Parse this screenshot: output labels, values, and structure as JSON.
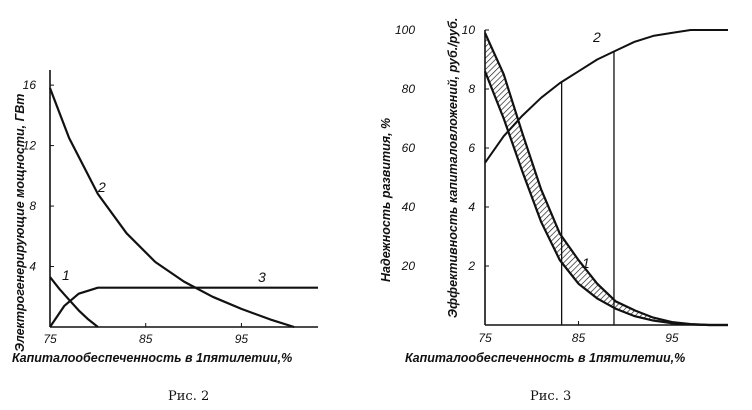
{
  "chart_data": [
    {
      "type": "line",
      "xlabel": "Капиталообеспеченность в 1пятилетии,%",
      "ylabel": "Электрогенерирующие мощности, ГВт",
      "xlim": [
        75,
        103
      ],
      "ylim": [
        0,
        17
      ],
      "x_ticks": [
        "75",
        "85",
        "95"
      ],
      "y_ticks": [
        "4",
        "8",
        "12",
        "16"
      ],
      "caption": "Рис. 2",
      "series": [
        {
          "name": "1",
          "x": [
            75,
            76,
            77,
            78,
            79,
            80
          ],
          "y": [
            3.3,
            2.5,
            1.8,
            1.1,
            0.5,
            0.0
          ]
        },
        {
          "name": "2",
          "x": [
            75,
            77,
            80,
            83,
            86,
            89,
            92,
            95,
            98,
            100.5
          ],
          "y": [
            15.8,
            12.5,
            8.8,
            6.2,
            4.3,
            3.0,
            2.0,
            1.2,
            0.5,
            0.0
          ]
        },
        {
          "name": "3",
          "x": [
            75,
            76.5,
            78,
            80,
            85,
            90,
            95,
            100,
            103
          ],
          "y": [
            0.0,
            1.4,
            2.2,
            2.6,
            2.6,
            2.6,
            2.6,
            2.6,
            2.6
          ]
        }
      ]
    },
    {
      "type": "line",
      "xlabel": "Капиталообеспеченность в 1пятилетии,%",
      "ylabel_left": "Надежность развития, %",
      "ylabel_right": "Эффективность капиталовложений, руб./руб.",
      "xlim": [
        75,
        101
      ],
      "ylim_left": [
        0,
        100
      ],
      "ylim_right": [
        0,
        10
      ],
      "x_ticks": [
        "75",
        "85",
        "95"
      ],
      "y_ticks_left": [
        "20",
        "40",
        "60",
        "80",
        "100"
      ],
      "y_ticks_right": [
        "2",
        "4",
        "6",
        "8",
        "10"
      ],
      "caption": "Рис. 3",
      "verticals_x": [
        83.2,
        88.8
      ],
      "series": [
        {
          "name": "2",
          "x": [
            75,
            77,
            79,
            81,
            83,
            85,
            87,
            89,
            91,
            93,
            95,
            97,
            99,
            101
          ],
          "y": [
            55,
            64,
            71,
            77,
            82,
            86,
            90,
            93,
            96,
            98,
            99,
            100,
            100,
            100
          ]
        },
        {
          "name": "1",
          "x_upper": [
            75,
            77,
            79,
            81,
            83,
            85,
            87,
            89,
            91,
            93,
            95,
            97,
            99,
            101
          ],
          "y_upper": [
            9.9,
            8.5,
            6.5,
            4.6,
            3.1,
            2.2,
            1.4,
            0.8,
            0.5,
            0.25,
            0.1,
            0.03,
            0.0,
            0.0
          ],
          "x_lower": [
            75,
            77,
            79,
            81,
            83,
            85,
            87,
            89,
            91,
            93,
            95,
            97,
            99,
            101
          ],
          "y_lower": [
            8.6,
            7.0,
            5.2,
            3.5,
            2.2,
            1.4,
            0.9,
            0.55,
            0.3,
            0.15,
            0.06,
            0.02,
            0.0,
            0.0
          ]
        }
      ]
    }
  ]
}
